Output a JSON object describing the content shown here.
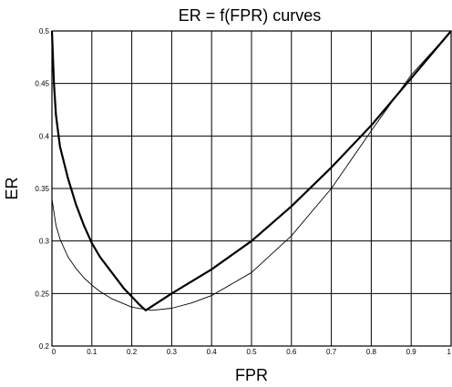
{
  "chart_data": {
    "type": "line",
    "title": "ER = f(FPR) curves",
    "xlabel": "FPR",
    "ylabel": "ER",
    "xlim": [
      0,
      1
    ],
    "ylim": [
      0.2,
      0.5
    ],
    "grid": true,
    "x_ticks": [
      "0",
      "0.1",
      "0.2",
      "0.3",
      "0.4",
      "0.5",
      "0.6",
      "0.7",
      "0.8",
      "0.9",
      "1"
    ],
    "y_ticks": [
      "0.2",
      "0.25",
      "0.3",
      "0.35",
      "0.4",
      "0.45",
      "0.5"
    ],
    "series": [
      {
        "style": "thick",
        "x": [
          0,
          0.005,
          0.01,
          0.02,
          0.04,
          0.06,
          0.08,
          0.1,
          0.12,
          0.15,
          0.18,
          0.2,
          0.22,
          0.235,
          0.3,
          0.4,
          0.5,
          0.6,
          0.7,
          0.8,
          0.9,
          1.0
        ],
        "y": [
          0.5,
          0.45,
          0.42,
          0.39,
          0.36,
          0.335,
          0.315,
          0.298,
          0.285,
          0.27,
          0.255,
          0.247,
          0.239,
          0.234,
          0.25,
          0.273,
          0.3,
          0.333,
          0.37,
          0.41,
          0.455,
          0.5
        ]
      },
      {
        "style": "thin",
        "x": [
          0,
          0.01,
          0.02,
          0.04,
          0.06,
          0.08,
          0.1,
          0.12,
          0.15,
          0.2,
          0.25,
          0.3,
          0.35,
          0.4,
          0.5,
          0.6,
          0.7,
          0.8,
          0.9,
          1.0
        ],
        "y": [
          0.34,
          0.315,
          0.302,
          0.285,
          0.274,
          0.265,
          0.258,
          0.252,
          0.245,
          0.237,
          0.234,
          0.236,
          0.241,
          0.248,
          0.27,
          0.305,
          0.35,
          0.405,
          0.458,
          0.5
        ]
      }
    ]
  }
}
